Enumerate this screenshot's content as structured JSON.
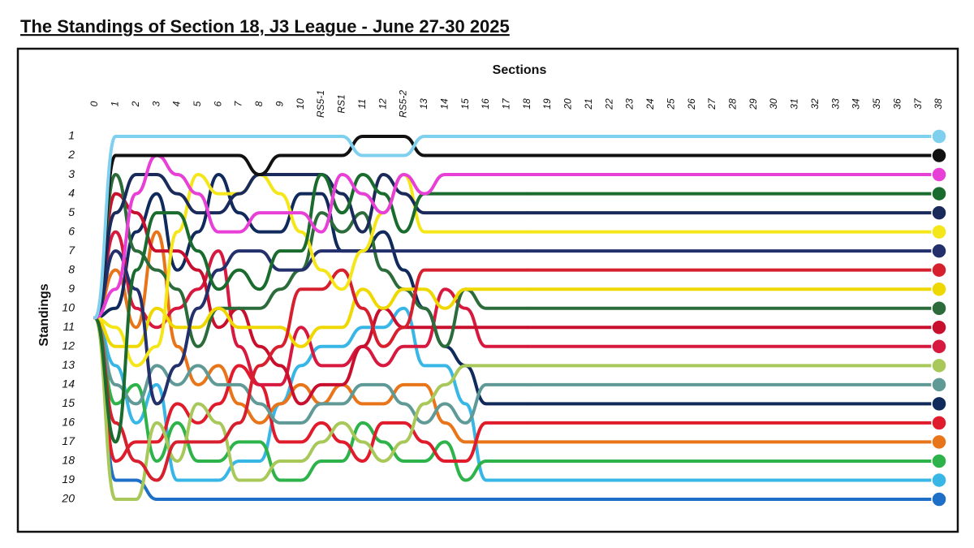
{
  "chart_data": {
    "type": "bump",
    "title": "The Standings of Section 18, J3 League - June 27-30 2025",
    "x_label": "Sections",
    "y_label": "Standings",
    "categories": [
      "0",
      "1",
      "2",
      "3",
      "4",
      "5",
      "6",
      "7",
      "8",
      "9",
      "10",
      "RS5-1",
      "RS1",
      "11",
      "12",
      "RS5-2",
      "13",
      "14",
      "15",
      "16",
      "17",
      "18",
      "19",
      "20",
      "21",
      "22",
      "23",
      "24",
      "25",
      "26",
      "27",
      "28",
      "29",
      "30",
      "31",
      "32",
      "33",
      "34",
      "35",
      "36",
      "37",
      "38"
    ],
    "ylim": [
      1,
      20
    ],
    "invert_y": true,
    "yticks": [
      1,
      2,
      3,
      4,
      5,
      6,
      7,
      8,
      9,
      10,
      11,
      12,
      13,
      14,
      15,
      16,
      17,
      18,
      19,
      20
    ],
    "series": [
      {
        "color": "#7fcfee",
        "values": [
          10.5,
          1,
          1,
          1,
          1,
          1,
          1,
          1,
          1,
          1,
          1,
          1,
          1,
          2,
          2,
          2,
          1,
          1,
          1,
          1,
          1,
          1,
          null,
          null,
          null,
          null,
          null,
          null,
          null,
          null,
          null,
          null,
          null,
          null,
          null,
          null,
          null,
          null,
          null,
          null,
          null,
          null
        ]
      },
      {
        "color": "#111111",
        "values": [
          10.5,
          2,
          2,
          2,
          2,
          2,
          2,
          2,
          3,
          2,
          2,
          2,
          2,
          1,
          1,
          1,
          2,
          2,
          2,
          2,
          2,
          2,
          null,
          null,
          null,
          null,
          null,
          null,
          null,
          null,
          null,
          null,
          null,
          null,
          null,
          null,
          null,
          null,
          null,
          null,
          null,
          null
        ]
      },
      {
        "color": "#e83fd6",
        "values": [
          10.5,
          9,
          4,
          2,
          3,
          4,
          6,
          6,
          5,
          5,
          5,
          6,
          3,
          4,
          5,
          3,
          4,
          3,
          3,
          3,
          3,
          3,
          null,
          null,
          null,
          null,
          null,
          null,
          null,
          null,
          null,
          null,
          null,
          null,
          null,
          null,
          null,
          null,
          null,
          null,
          null,
          null
        ]
      },
      {
        "color": "#1a6b2e",
        "values": [
          10.5,
          17,
          8,
          5,
          5,
          7,
          9,
          8,
          9,
          7,
          7,
          3,
          5,
          3,
          4,
          6,
          4,
          4,
          4,
          4,
          4,
          4,
          null,
          null,
          null,
          null,
          null,
          null,
          null,
          null,
          null,
          null,
          null,
          null,
          null,
          null,
          null,
          null,
          null,
          null,
          null,
          null
        ]
      },
      {
        "color": "#1a2a5a",
        "values": [
          10.5,
          5,
          3,
          3,
          4,
          5,
          5,
          4,
          3,
          3,
          3,
          3,
          4,
          6,
          3,
          4,
          5,
          5,
          5,
          5,
          5,
          5,
          null,
          null,
          null,
          null,
          null,
          null,
          null,
          null,
          null,
          null,
          null,
          null,
          null,
          null,
          null,
          null,
          null,
          null,
          null,
          null
        ]
      },
      {
        "color": "#f5e61a",
        "values": [
          10.5,
          11,
          13,
          12,
          6,
          3,
          4,
          4,
          3,
          4,
          6,
          8,
          9,
          7,
          5,
          3,
          6,
          6,
          6,
          6,
          6,
          6,
          null,
          null,
          null,
          null,
          null,
          null,
          null,
          null,
          null,
          null,
          null,
          null,
          null,
          null,
          null,
          null,
          null,
          null,
          null,
          null
        ]
      },
      {
        "color": "#23306b",
        "values": [
          10.5,
          7,
          9,
          15,
          13,
          10,
          8,
          7,
          7,
          8,
          8,
          7,
          7,
          7,
          7,
          7,
          7,
          7,
          7,
          7,
          7,
          7,
          null,
          null,
          null,
          null,
          null,
          null,
          null,
          null,
          null,
          null,
          null,
          null,
          null,
          null,
          null,
          null,
          null,
          null,
          null,
          null
        ]
      },
      {
        "color": "#d6202e",
        "values": [
          10.5,
          16,
          18,
          19,
          17,
          17,
          17,
          16,
          13,
          12,
          9,
          9,
          8,
          10,
          12,
          11,
          8,
          8,
          8,
          8,
          8,
          8,
          null,
          null,
          null,
          null,
          null,
          null,
          null,
          null,
          null,
          null,
          null,
          null,
          null,
          null,
          null,
          null,
          null,
          null,
          null,
          null
        ]
      },
      {
        "color": "#efd800",
        "values": [
          10.5,
          12,
          12,
          10,
          11,
          11,
          10,
          11,
          11,
          11,
          12,
          11,
          11,
          9,
          10,
          9,
          9,
          10,
          9,
          9,
          9,
          9,
          null,
          null,
          null,
          null,
          null,
          null,
          null,
          null,
          null,
          null,
          null,
          null,
          null,
          null,
          null,
          null,
          null,
          null,
          null,
          null
        ]
      },
      {
        "color": "#2c6b3a",
        "values": [
          10.5,
          3,
          7,
          8,
          9,
          12,
          10,
          10,
          10,
          9,
          8,
          5,
          6,
          5,
          8,
          9,
          10,
          12,
          9,
          10,
          10,
          10,
          null,
          null,
          null,
          null,
          null,
          null,
          null,
          null,
          null,
          null,
          null,
          null,
          null,
          null,
          null,
          null,
          null,
          null,
          null,
          null
        ]
      },
      {
        "color": "#c8102e",
        "values": [
          10.5,
          4,
          5,
          7,
          7,
          8,
          11,
          10,
          12,
          13,
          15,
          14,
          14,
          12,
          10,
          11,
          11,
          11,
          11,
          11,
          11,
          11,
          null,
          null,
          null,
          null,
          null,
          null,
          null,
          null,
          null,
          null,
          null,
          null,
          null,
          null,
          null,
          null,
          null,
          null,
          null,
          null
        ]
      },
      {
        "color": "#d7193f",
        "values": [
          10.5,
          6,
          10,
          11,
          10,
          9,
          7,
          12,
          14,
          14,
          11,
          13,
          13,
          12,
          13,
          12,
          12,
          9,
          10,
          12,
          12,
          12,
          null,
          null,
          null,
          null,
          null,
          null,
          null,
          null,
          null,
          null,
          null,
          null,
          null,
          null,
          null,
          null,
          null,
          null,
          null,
          null
        ]
      },
      {
        "color": "#a8c85a",
        "values": [
          10.5,
          20,
          20,
          16,
          18,
          15,
          16,
          19,
          19,
          18,
          18,
          17,
          16,
          17,
          18,
          17,
          15,
          14,
          13,
          13,
          13,
          13,
          null,
          null,
          null,
          null,
          null,
          null,
          null,
          null,
          null,
          null,
          null,
          null,
          null,
          null,
          null,
          null,
          null,
          null,
          null,
          null
        ]
      },
      {
        "color": "#5f9a96",
        "values": [
          10.5,
          14,
          15,
          13,
          14,
          13,
          14,
          14,
          15,
          16,
          16,
          15,
          15,
          14,
          14,
          15,
          16,
          15,
          16,
          14,
          14,
          14,
          null,
          null,
          null,
          null,
          null,
          null,
          null,
          null,
          null,
          null,
          null,
          null,
          null,
          null,
          null,
          null,
          null,
          null,
          null,
          null
        ]
      },
      {
        "color": "#102a5c",
        "values": [
          10.5,
          10,
          6,
          4,
          8,
          6,
          3,
          5,
          6,
          6,
          4,
          4,
          7,
          7,
          6,
          8,
          10,
          12,
          13,
          15,
          15,
          15,
          null,
          null,
          null,
          null,
          null,
          null,
          null,
          null,
          null,
          null,
          null,
          null,
          null,
          null,
          null,
          null,
          null,
          null,
          null,
          null
        ]
      },
      {
        "color": "#e01b2c",
        "values": [
          10.5,
          18,
          17,
          17,
          15,
          16,
          15,
          13,
          14,
          17,
          17,
          16,
          17,
          18,
          16,
          16,
          17,
          18,
          18,
          16,
          16,
          16,
          null,
          null,
          null,
          null,
          null,
          null,
          null,
          null,
          null,
          null,
          null,
          null,
          null,
          null,
          null,
          null,
          null,
          null,
          null,
          null
        ]
      },
      {
        "color": "#e8751a",
        "values": [
          10.5,
          8,
          11,
          6,
          12,
          14,
          13,
          15,
          16,
          15,
          14,
          15,
          14,
          15,
          15,
          14,
          14,
          16,
          17,
          17,
          17,
          17,
          null,
          null,
          null,
          null,
          null,
          null,
          null,
          null,
          null,
          null,
          null,
          null,
          null,
          null,
          null,
          null,
          null,
          null,
          null,
          null
        ]
      },
      {
        "color": "#2db34a",
        "values": [
          10.5,
          15,
          14,
          18,
          16,
          18,
          18,
          17,
          17,
          19,
          19,
          18,
          18,
          16,
          17,
          18,
          18,
          17,
          19,
          18,
          18,
          18,
          null,
          null,
          null,
          null,
          null,
          null,
          null,
          null,
          null,
          null,
          null,
          null,
          null,
          null,
          null,
          null,
          null,
          null,
          null,
          null
        ]
      },
      {
        "color": "#38b6e6",
        "values": [
          10.5,
          13,
          16,
          14,
          19,
          19,
          19,
          18,
          18,
          15,
          13,
          12,
          12,
          11,
          11,
          10,
          13,
          13,
          15,
          19,
          19,
          19,
          null,
          null,
          null,
          null,
          null,
          null,
          null,
          null,
          null,
          null,
          null,
          null,
          null,
          null,
          null,
          null,
          null,
          null,
          null,
          null
        ]
      },
      {
        "color": "#1e6fc8",
        "values": [
          10.5,
          19,
          19,
          20,
          20,
          20,
          20,
          20,
          20,
          20,
          20,
          20,
          20,
          20,
          20,
          20,
          20,
          20,
          20,
          20,
          20,
          20,
          null,
          null,
          null,
          null,
          null,
          null,
          null,
          null,
          null,
          null,
          null,
          null,
          null,
          null,
          null,
          null,
          null,
          null,
          null,
          null
        ]
      }
    ]
  }
}
